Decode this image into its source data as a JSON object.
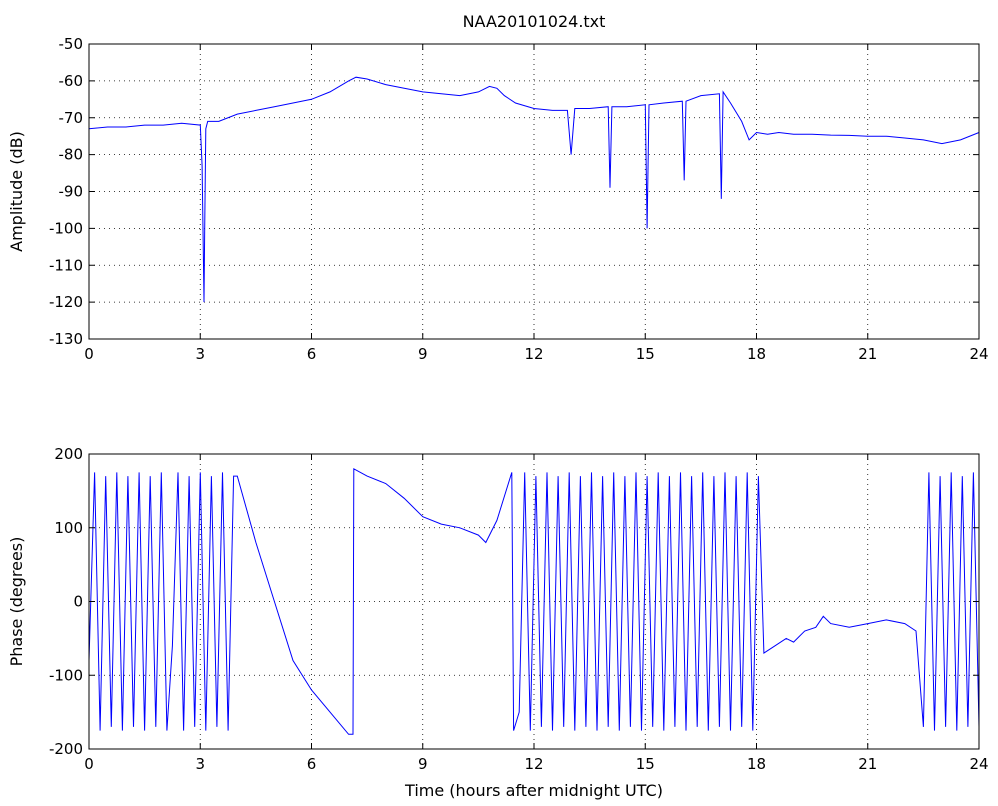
{
  "chart_data": [
    {
      "type": "line",
      "title": "NAA20101024.txt",
      "xlabel": "",
      "ylabel": "Amplitude (dB)",
      "xlim": [
        0,
        24
      ],
      "ylim": [
        -130,
        -50
      ],
      "xticks": [
        0,
        3,
        6,
        9,
        12,
        15,
        18,
        21,
        24
      ],
      "yticks": [
        -130,
        -120,
        -110,
        -100,
        -90,
        -80,
        -70,
        -60,
        -50
      ],
      "grid": true,
      "line_color": "#0000ff",
      "series": [
        {
          "x": [
            0.0,
            0.5,
            1.0,
            1.5,
            2.0,
            2.5,
            3.0,
            3.05,
            3.1,
            3.12,
            3.15,
            3.2,
            3.5,
            4.0,
            4.5,
            5.0,
            5.5,
            6.0,
            6.5,
            7.0,
            7.2,
            7.5,
            8.0,
            8.5,
            9.0,
            9.5,
            10.0,
            10.5,
            10.8,
            11.0,
            11.2,
            11.5,
            12.0,
            12.5,
            12.9,
            13.0,
            13.1,
            13.5,
            14.0,
            14.05,
            14.1,
            14.5,
            15.0,
            15.05,
            15.1,
            15.5,
            16.0,
            16.05,
            16.1,
            16.5,
            17.0,
            17.05,
            17.1,
            17.3,
            17.6,
            17.8,
            18.0,
            18.3,
            18.6,
            19.0,
            19.5,
            20.0,
            20.5,
            21.0,
            21.5,
            22.0,
            22.5,
            23.0,
            23.5,
            24.0
          ],
          "values": [
            -73,
            -72.5,
            -72.5,
            -72,
            -72,
            -71.5,
            -72,
            -83,
            -120,
            -100,
            -73,
            -71,
            -71,
            -69,
            -68,
            -67,
            -66,
            -65,
            -63,
            -60,
            -59,
            -59.5,
            -61,
            -62,
            -63,
            -63.5,
            -64,
            -63,
            -61.5,
            -62,
            -64,
            -66,
            -67.5,
            -68,
            -68,
            -80,
            -67.5,
            -67.5,
            -67,
            -89,
            -67,
            -67,
            -66.5,
            -100,
            -66.5,
            -66,
            -65.5,
            -87,
            -65.5,
            -64,
            -63.5,
            -92,
            -63,
            -66,
            -71,
            -76,
            -74,
            -74.5,
            -74,
            -74.5,
            -74.5,
            -74.7,
            -74.8,
            -75,
            -75,
            -75.5,
            -76,
            -77,
            -76,
            -74
          ]
        }
      ]
    },
    {
      "type": "line",
      "title": "",
      "xlabel": "Time (hours after midnight UTC)",
      "ylabel": "Phase (degrees)",
      "xlim": [
        0,
        24
      ],
      "ylim": [
        -200,
        200
      ],
      "xticks": [
        0,
        3,
        6,
        9,
        12,
        15,
        18,
        21,
        24
      ],
      "yticks": [
        -200,
        -100,
        0,
        100,
        200
      ],
      "grid": true,
      "line_color": "#0000ff",
      "series": [
        {
          "x": [
            0.0,
            0.15,
            0.3,
            0.45,
            0.6,
            0.75,
            0.9,
            1.05,
            1.2,
            1.35,
            1.5,
            1.65,
            1.8,
            1.95,
            2.1,
            2.25,
            2.4,
            2.55,
            2.7,
            2.85,
            3.0,
            3.15,
            3.3,
            3.45,
            3.6,
            3.75,
            3.9,
            4.0,
            4.5,
            5.0,
            5.5,
            6.0,
            6.5,
            7.0,
            7.12,
            7.14,
            7.5,
            8.0,
            8.5,
            9.0,
            9.5,
            10.0,
            10.5,
            10.7,
            11.0,
            11.4,
            11.45,
            11.6,
            11.75,
            11.9,
            12.05,
            12.2,
            12.35,
            12.5,
            12.65,
            12.8,
            12.95,
            13.1,
            13.25,
            13.4,
            13.55,
            13.7,
            13.85,
            14.0,
            14.15,
            14.3,
            14.45,
            14.6,
            14.75,
            14.9,
            15.05,
            15.2,
            15.35,
            15.5,
            15.65,
            15.8,
            15.95,
            16.1,
            16.25,
            16.4,
            16.55,
            16.7,
            16.85,
            17.0,
            17.15,
            17.3,
            17.45,
            17.6,
            17.75,
            17.9,
            18.05,
            18.2,
            18.5,
            18.8,
            19.0,
            19.3,
            19.6,
            19.8,
            20.0,
            20.5,
            21.0,
            21.5,
            22.0,
            22.3,
            22.5,
            22.65,
            22.8,
            22.95,
            23.1,
            23.25,
            23.4,
            23.55,
            23.7,
            23.85,
            24.0
          ],
          "values": [
            -80,
            175,
            -175,
            170,
            -170,
            175,
            -175,
            170,
            -170,
            175,
            -175,
            170,
            -170,
            175,
            -175,
            -60,
            175,
            -175,
            170,
            -170,
            175,
            -175,
            170,
            -170,
            175,
            -175,
            170,
            170,
            80,
            0,
            -80,
            -120,
            -150,
            -180,
            -180,
            180,
            170,
            160,
            140,
            115,
            105,
            100,
            90,
            80,
            110,
            175,
            -175,
            -150,
            175,
            -175,
            170,
            -170,
            175,
            -175,
            170,
            -170,
            175,
            -175,
            170,
            -170,
            175,
            -175,
            170,
            -170,
            175,
            -175,
            170,
            -170,
            175,
            -175,
            170,
            -170,
            175,
            -175,
            170,
            -170,
            175,
            -175,
            170,
            -170,
            175,
            -175,
            170,
            -170,
            175,
            -175,
            170,
            -170,
            175,
            -175,
            170,
            -70,
            -60,
            -50,
            -55,
            -40,
            -35,
            -20,
            -30,
            -35,
            -30,
            -25,
            -30,
            -40,
            -170,
            175,
            -175,
            170,
            -170,
            175,
            -175,
            170,
            -170,
            175,
            -170
          ]
        }
      ]
    }
  ]
}
